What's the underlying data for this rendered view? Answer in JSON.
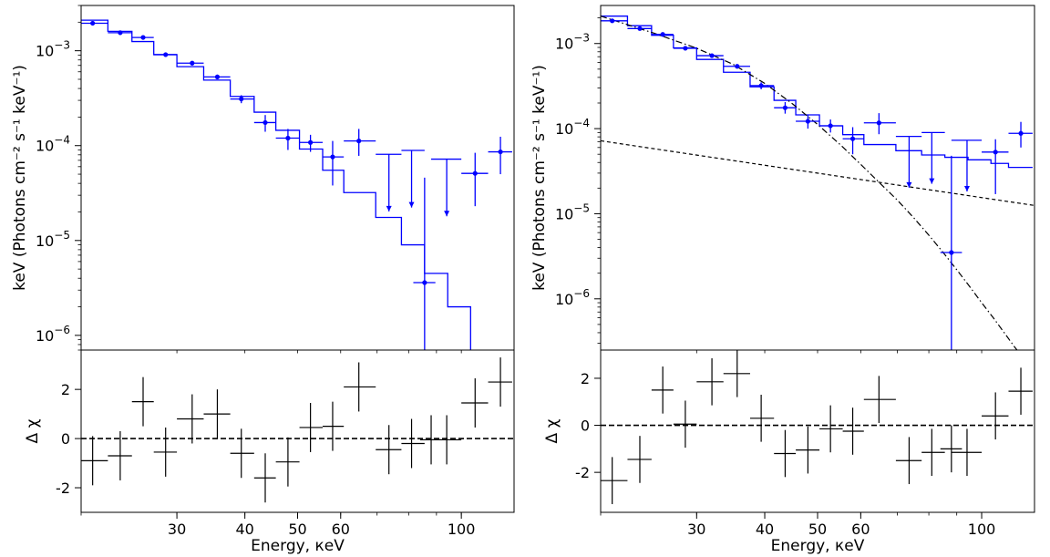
{
  "chart_data": [
    {
      "type": "scatter",
      "panel": "left-spectrum",
      "xscale": "log",
      "yscale": "log",
      "ylabel": "keV (Photons cm⁻² s⁻¹ keV⁻¹)",
      "xlim": [
        20,
        125
      ],
      "ylim": [
        7e-07,
        0.003
      ],
      "y_ticks": [
        {
          "value": 0.001,
          "base": "10",
          "exp": "−3"
        },
        {
          "value": 0.0001,
          "base": "10",
          "exp": "−4"
        },
        {
          "value": 1e-05,
          "base": "10",
          "exp": "−5"
        },
        {
          "value": 1e-06,
          "base": "10",
          "exp": "−6"
        }
      ],
      "data_points": {
        "color": "#0000ff",
        "x": [
          21.0,
          23.6,
          26.0,
          28.6,
          32.0,
          35.6,
          39.4,
          43.6,
          48.0,
          52.8,
          58.0,
          64.8,
          73.6,
          81.0,
          94.0,
          106.0,
          118.0
        ],
        "x_low": [
          20.0,
          22.4,
          24.8,
          27.2,
          30.0,
          33.6,
          37.6,
          41.6,
          45.6,
          50.4,
          55.6,
          60.8,
          69.6,
          77.6,
          88.0,
          100.0,
          112.0
        ],
        "x_high": [
          22.4,
          24.8,
          27.2,
          30.0,
          33.6,
          37.6,
          41.6,
          45.6,
          50.4,
          55.6,
          60.8,
          69.6,
          77.6,
          85.6,
          100.0,
          112.0,
          124.0
        ],
        "y": [
          0.00195,
          0.00155,
          0.00138,
          0.00091,
          0.00074,
          0.00053,
          0.00031,
          0.000175,
          0.00012,
          0.000108,
          7.6e-05,
          0.000112,
          8.1e-05,
          8.9e-05,
          7.2e-05,
          5.1e-05,
          8.6e-05
        ],
        "y_low": [
          0.00185,
          0.00147,
          0.00131,
          0.00086,
          0.0007,
          0.0005,
          0.00028,
          0.00014,
          9e-05,
          8.6e-05,
          3.8e-05,
          7.8e-05,
          2e-05,
          2.3e-05,
          1.8e-05,
          2.3e-05,
          5e-05
        ],
        "y_high": [
          0.00205,
          0.00163,
          0.00145,
          0.00096,
          0.00078,
          0.00056,
          0.00034,
          0.00021,
          0.00015,
          0.00013,
          0.000112,
          0.00015,
          8.1e-05,
          8.9e-05,
          7.2e-05,
          8.4e-05,
          0.000124
        ],
        "upper_limit": [
          false,
          false,
          false,
          false,
          false,
          false,
          false,
          false,
          false,
          false,
          false,
          false,
          true,
          true,
          true,
          false,
          false
        ]
      },
      "extra_point": {
        "x": 85.6,
        "x_low": 81.6,
        "x_high": 89.6,
        "y": 3.6e-06,
        "y_low": 3e-07,
        "y_high": 4.6e-05
      },
      "model": {
        "color": "#0000ff",
        "edges": [
          20.0,
          22.4,
          24.8,
          27.2,
          30.0,
          33.6,
          37.6,
          41.6,
          45.6,
          50.4,
          55.6,
          60.8,
          69.6,
          77.6,
          85.6,
          94.4,
          104.0,
          112.0,
          124.0
        ],
        "values": [
          0.0021,
          0.0016,
          0.00125,
          0.00091,
          0.00068,
          0.00049,
          0.00033,
          0.000225,
          0.000145,
          9.2e-05,
          5.5e-05,
          3.2e-05,
          1.75e-05,
          9e-06,
          4.5e-06,
          2e-06,
          6e-07,
          2e-07
        ]
      }
    },
    {
      "type": "scatter",
      "panel": "left-residuals",
      "xlabel": "Energy, кeV",
      "ylabel": "Δ χ",
      "xscale": "log",
      "xlim": [
        20,
        125
      ],
      "ylim": [
        -3,
        3.6
      ],
      "x_ticks": [
        30,
        40,
        50,
        60,
        100
      ],
      "y_ticks": [
        2,
        0,
        -2
      ],
      "zero_line": true,
      "points": {
        "color": "#000000",
        "x": [
          21.0,
          23.6,
          26.0,
          28.6,
          32.0,
          35.6,
          39.4,
          43.6,
          48.0,
          52.8,
          58.0,
          64.8,
          73.6,
          81.0,
          88.0,
          94.0,
          106.0,
          118.0
        ],
        "x_low": [
          20.0,
          22.4,
          24.8,
          27.2,
          30.0,
          33.6,
          37.6,
          41.6,
          45.6,
          50.4,
          55.6,
          60.8,
          69.6,
          77.6,
          84.0,
          88.0,
          100.0,
          112.0
        ],
        "x_high": [
          22.4,
          24.8,
          27.2,
          30.0,
          33.6,
          37.6,
          41.6,
          45.6,
          50.4,
          55.6,
          60.8,
          69.6,
          77.6,
          85.6,
          92.0,
          100.0,
          112.0,
          124.0
        ],
        "y": [
          -0.9,
          -0.7,
          1.5,
          -0.55,
          0.8,
          1.0,
          -0.6,
          -1.6,
          -0.95,
          0.45,
          0.5,
          2.1,
          -0.45,
          -0.2,
          -0.05,
          -0.05,
          1.45,
          2.3
        ],
        "y_err": [
          1.0,
          1.0,
          1.0,
          1.0,
          1.0,
          1.0,
          1.0,
          1.0,
          1.0,
          1.0,
          1.0,
          1.0,
          1.0,
          1.0,
          1.0,
          1.0,
          1.0,
          1.0
        ]
      }
    },
    {
      "type": "scatter",
      "panel": "right-spectrum",
      "xscale": "log",
      "yscale": "log",
      "ylabel": "keV (Photons cm⁻² s⁻¹ keV⁻¹)",
      "xlim": [
        20,
        125
      ],
      "ylim": [
        2.5e-07,
        0.0028
      ],
      "y_ticks": [
        {
          "value": 0.001,
          "base": "10",
          "exp": "−3"
        },
        {
          "value": 0.0001,
          "base": "10",
          "exp": "−4"
        },
        {
          "value": 1e-05,
          "base": "10",
          "exp": "−5"
        },
        {
          "value": 1e-06,
          "base": "10",
          "exp": "−6"
        }
      ],
      "data_points": {
        "color": "#0000ff",
        "x": [
          21.0,
          23.6,
          26.0,
          28.6,
          32.0,
          35.6,
          39.4,
          43.6,
          48.0,
          52.8,
          58.0,
          64.8,
          73.6,
          81.0,
          94.0,
          106.0,
          118.0
        ],
        "x_low": [
          20.0,
          22.4,
          24.8,
          27.2,
          30.0,
          33.6,
          37.6,
          41.6,
          45.6,
          50.4,
          55.6,
          60.8,
          69.6,
          77.6,
          88.0,
          100.0,
          112.0
        ],
        "x_high": [
          22.4,
          24.8,
          27.2,
          30.0,
          33.6,
          37.6,
          41.6,
          45.6,
          50.4,
          55.6,
          60.8,
          69.6,
          77.6,
          85.6,
          100.0,
          112.0,
          124.0
        ],
        "y": [
          0.00185,
          0.0015,
          0.00128,
          0.00088,
          0.00072,
          0.00054,
          0.00032,
          0.000176,
          0.000122,
          0.000108,
          7.6e-05,
          0.000117,
          8.1e-05,
          9e-05,
          7.3e-05,
          5.3e-05,
          8.8e-05
        ],
        "y_low": [
          0.00176,
          0.00143,
          0.00121,
          0.00084,
          0.00068,
          0.00051,
          0.00029,
          0.00015,
          0.0001,
          9e-05,
          5e-05,
          8.6e-05,
          2e-05,
          2.1e-05,
          1.7e-05,
          1.7e-05,
          6e-05
        ],
        "y_high": [
          0.00195,
          0.00158,
          0.00135,
          0.00093,
          0.00076,
          0.00057,
          0.00035,
          0.000205,
          0.000145,
          0.000128,
          0.000104,
          0.000152,
          8.1e-05,
          9e-05,
          7.3e-05,
          7.5e-05,
          0.00012
        ],
        "upper_limit": [
          false,
          false,
          false,
          false,
          false,
          false,
          false,
          false,
          false,
          false,
          false,
          false,
          true,
          true,
          true,
          false,
          false
        ]
      },
      "extra_point": {
        "x": 88.0,
        "x_low": 84.0,
        "x_high": 92.0,
        "y": 3.5e-06,
        "y_low": 2.5e-07,
        "y_high": 4.8e-05
      },
      "model": {
        "color": "#0000ff",
        "edges": [
          20.0,
          22.4,
          24.8,
          27.2,
          30.0,
          33.6,
          37.6,
          41.6,
          45.6,
          50.4,
          55.6,
          60.8,
          69.6,
          77.6,
          85.6,
          94.4,
          104.0,
          112.0,
          124.0
        ],
        "values": [
          0.0021,
          0.00162,
          0.00125,
          0.00089,
          0.00065,
          0.00046,
          0.00031,
          0.000215,
          0.000145,
          0.000108,
          8.5e-05,
          6.5e-05,
          5.5e-05,
          4.9e-05,
          4.6e-05,
          4.3e-05,
          3.9e-05,
          3.5e-05
        ]
      },
      "power_law": {
        "style": "dashed",
        "color": "#000000",
        "x": [
          20,
          125
        ],
        "y": [
          7.2e-05,
          1.25e-05
        ]
      },
      "cutoff": {
        "style": "dash-dot",
        "color": "#000000",
        "x": [
          20,
          25,
          30,
          35,
          40,
          45,
          50,
          55,
          60,
          65,
          70,
          75,
          80,
          85,
          90,
          95,
          100,
          105,
          110,
          115,
          118
        ],
        "y": [
          0.0021,
          0.00133,
          0.00088,
          0.00057,
          0.00034,
          0.000195,
          0.000112,
          6.5e-05,
          3.8e-05,
          2.3e-05,
          1.45e-05,
          9e-06,
          5.6e-06,
          3.5e-06,
          2.2e-06,
          1.4e-06,
          9e-07,
          6e-07,
          4e-07,
          2.7e-07,
          2.2e-07
        ]
      }
    },
    {
      "type": "scatter",
      "panel": "right-residuals",
      "xlabel": "Energy, кeV",
      "ylabel": "Δ χ",
      "xscale": "log",
      "xlim": [
        20,
        125
      ],
      "ylim": [
        -3.7,
        3.2
      ],
      "x_ticks": [
        30,
        40,
        50,
        60,
        100
      ],
      "y_ticks": [
        2,
        0,
        -2
      ],
      "zero_line": true,
      "points": {
        "color": "#000000",
        "x": [
          21.0,
          23.6,
          26.0,
          28.6,
          32.0,
          35.6,
          39.4,
          43.6,
          48.0,
          52.8,
          58.0,
          64.8,
          73.6,
          81.0,
          88.0,
          94.0,
          106.0,
          118.0
        ],
        "x_low": [
          20.0,
          22.4,
          24.8,
          27.2,
          30.0,
          33.6,
          37.6,
          41.6,
          45.6,
          50.4,
          55.6,
          60.8,
          69.6,
          77.6,
          84.0,
          88.0,
          100.0,
          112.0
        ],
        "x_high": [
          22.4,
          24.8,
          27.2,
          30.0,
          33.6,
          37.6,
          41.6,
          45.6,
          50.4,
          55.6,
          60.8,
          69.6,
          77.6,
          85.6,
          92.0,
          100.0,
          112.0,
          124.0
        ],
        "y": [
          -2.35,
          -1.45,
          1.5,
          0.05,
          1.85,
          2.2,
          0.3,
          -1.2,
          -1.05,
          -0.15,
          -0.25,
          1.1,
          -1.5,
          -1.15,
          -1.0,
          -1.15,
          0.4,
          1.45
        ],
        "y_err": [
          1.0,
          1.0,
          1.0,
          1.0,
          1.0,
          1.0,
          1.0,
          1.0,
          1.0,
          1.0,
          1.0,
          1.0,
          1.0,
          1.0,
          1.0,
          1.0,
          1.0,
          1.0
        ]
      }
    }
  ]
}
